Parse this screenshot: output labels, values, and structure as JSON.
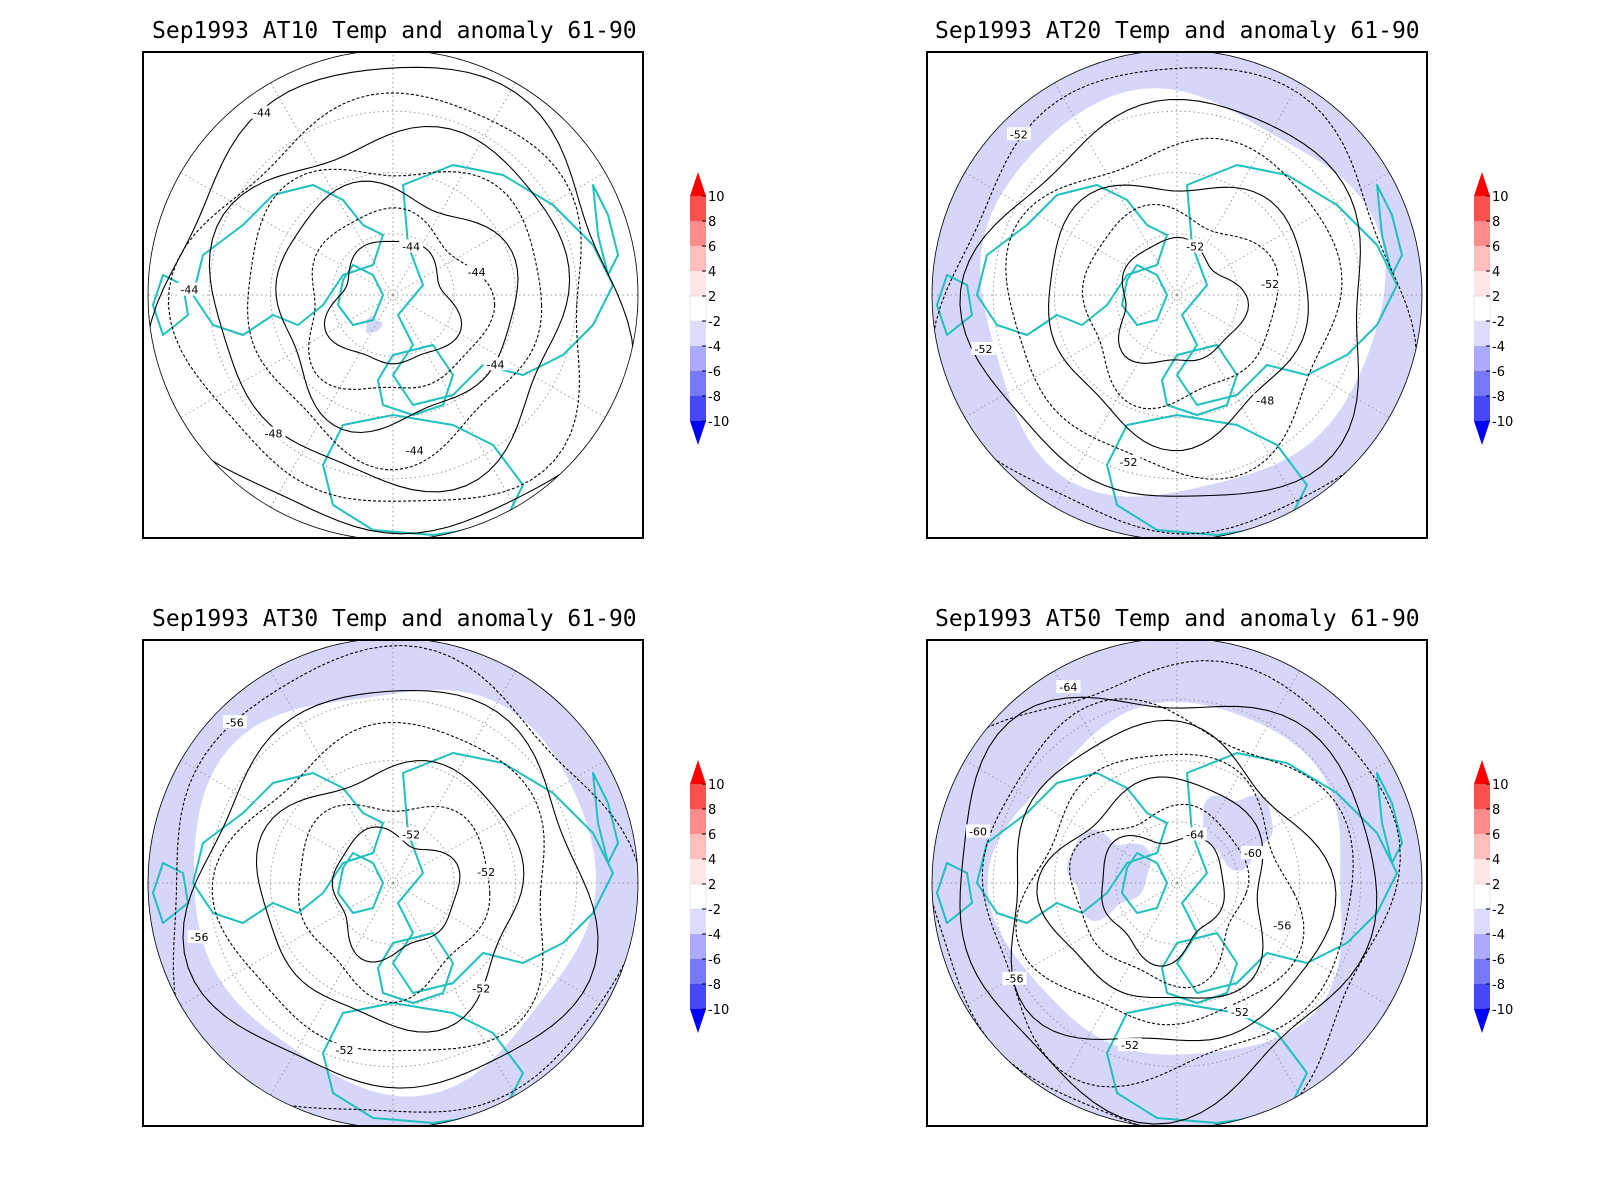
{
  "panels": [
    {
      "id": "at10",
      "title": "Sep1993 AT10 Temp and anomaly 61-90",
      "contour_labels": [
        "-44",
        "-44",
        "-44",
        "-44",
        "-48",
        "-44",
        "-44"
      ],
      "anomaly_ring": "none"
    },
    {
      "id": "at20",
      "title": "Sep1993 AT20 Temp and anomaly 61-90",
      "contour_labels": [
        "-52",
        "-52",
        "-48",
        "-52",
        "-52",
        "-52"
      ],
      "anomaly_ring": "outer"
    },
    {
      "id": "at30",
      "title": "Sep1993 AT30 Temp and anomaly 61-90",
      "contour_labels": [
        "-52",
        "-52",
        "-52",
        "-52",
        "-56",
        "-56"
      ],
      "anomaly_ring": "outer"
    },
    {
      "id": "at50",
      "title": "Sep1993 AT50 Temp and anomaly 61-90",
      "contour_labels": [
        "-64",
        "-60",
        "-56",
        "-52",
        "-52",
        "-56",
        "-60",
        "-64"
      ],
      "anomaly_ring": "outer-wide"
    }
  ],
  "colorbar": {
    "levels": [
      "10",
      "8",
      "6",
      "4",
      "2",
      "-2",
      "-4",
      "-6",
      "-8",
      "-10"
    ],
    "colors": [
      "#ff0000",
      "#ff5050",
      "#ff8c8c",
      "#ffbebe",
      "#ffe6e6",
      "#ffffff",
      "#dcdcff",
      "#aaaaff",
      "#7878ff",
      "#4646ff",
      "#0000ff"
    ]
  },
  "colors": {
    "coastline": "#20c0c0",
    "anomaly_fill": "#d6d6fa",
    "contour": "#000000",
    "grid": "#9a9a9a"
  }
}
